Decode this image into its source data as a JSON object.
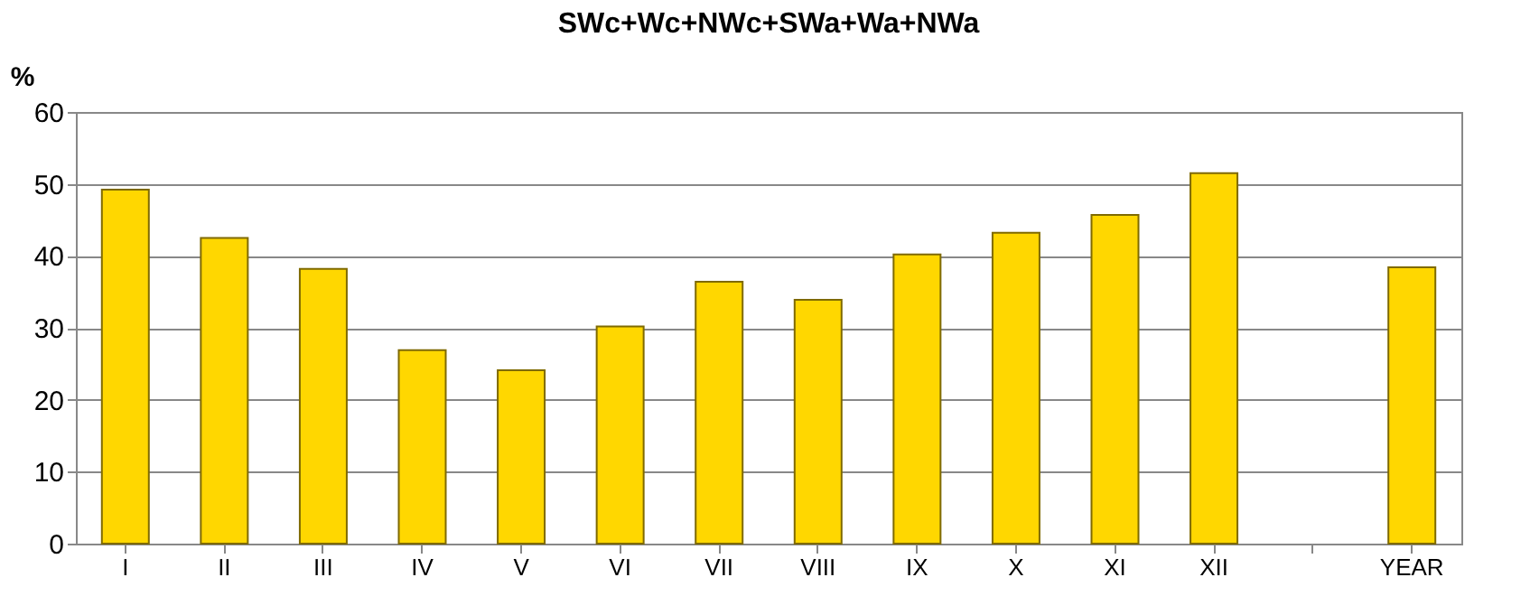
{
  "chart_data": {
    "type": "bar",
    "title": "SWc+Wc+NWc+SWa+Wa+NWa",
    "ylabel": "%",
    "categories": [
      "I",
      "II",
      "III",
      "IV",
      "V",
      "VI",
      "VII",
      "VIII",
      "IX",
      "X",
      "XI",
      "XII",
      null,
      "YEAR"
    ],
    "values": [
      49.2,
      42.5,
      38.2,
      26.9,
      24.1,
      30.2,
      36.4,
      33.9,
      40.2,
      43.2,
      45.7,
      51.5,
      null,
      38.4
    ],
    "color": "#ffd700",
    "ylim": [
      0,
      60
    ],
    "yticks": [
      0,
      10,
      20,
      30,
      40,
      50,
      60
    ],
    "grid": "y"
  }
}
